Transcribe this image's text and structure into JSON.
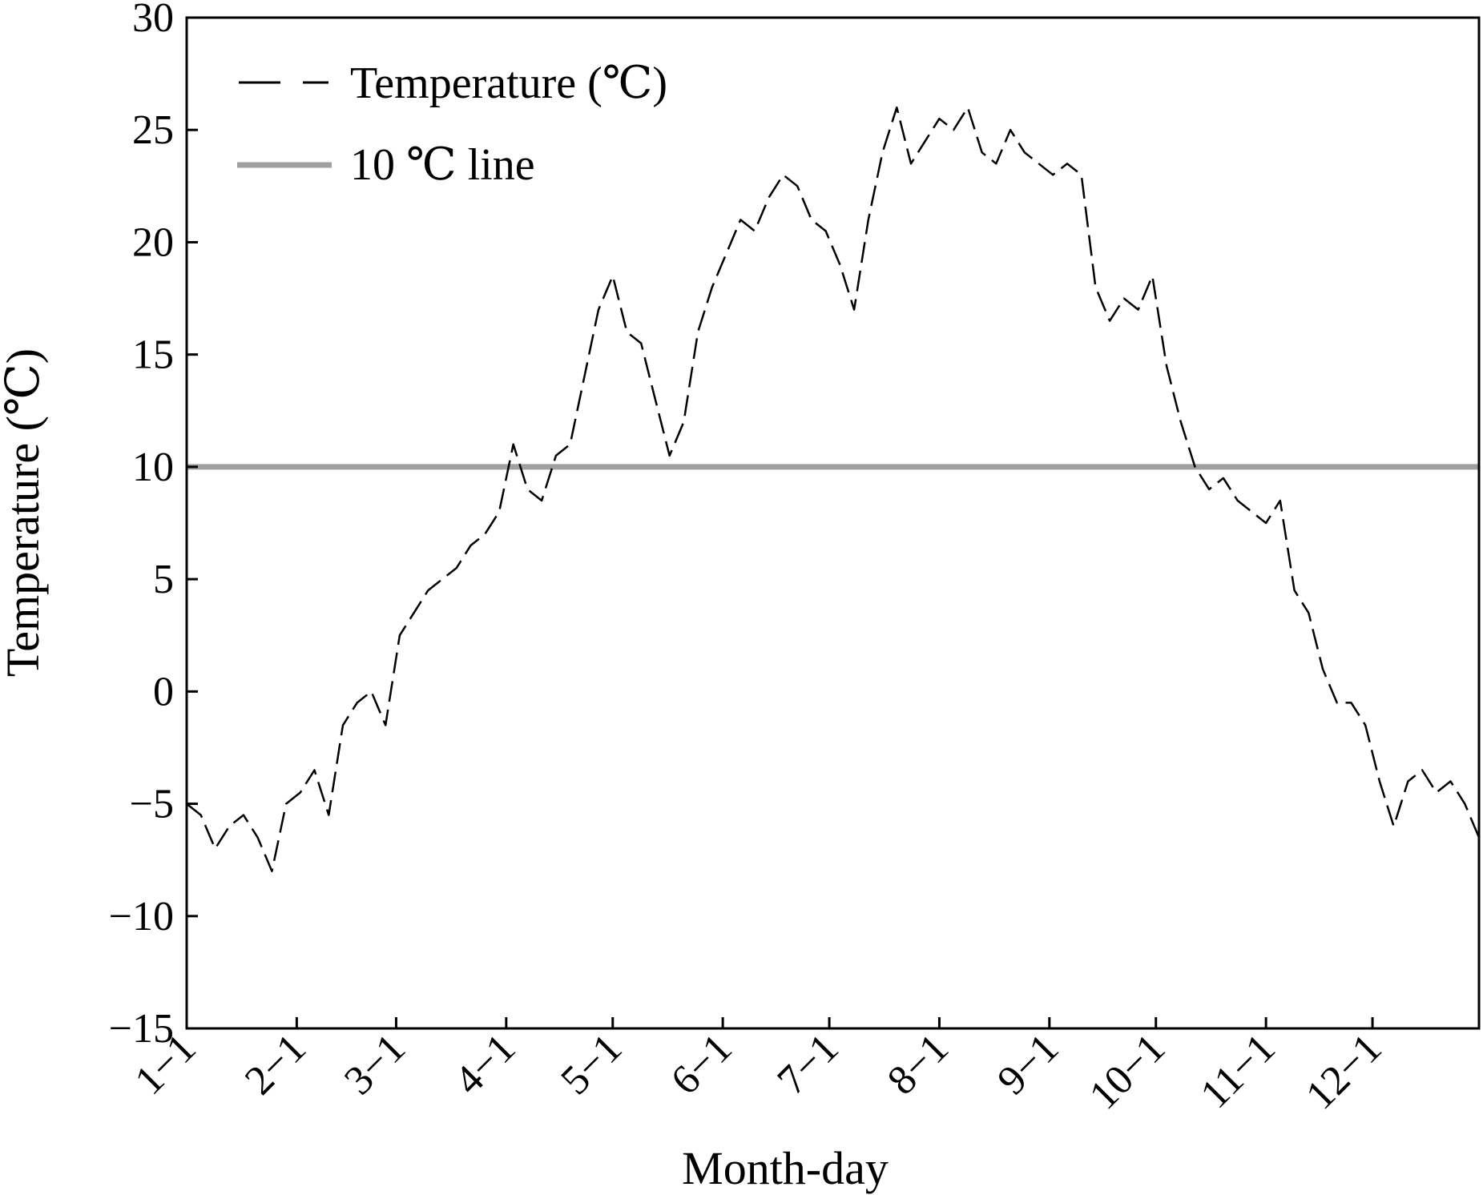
{
  "chart_data": {
    "type": "line",
    "xlabel": "Month-day",
    "ylabel": "Temperature (℃)",
    "ylim": [
      -15,
      30
    ],
    "yticks": [
      -15,
      -10,
      -5,
      0,
      5,
      10,
      15,
      20,
      25,
      30
    ],
    "ytick_labels": [
      "−15",
      "−10",
      "−5",
      "0",
      "5",
      "10",
      "15",
      "20",
      "25",
      "30"
    ],
    "xlim": [
      1,
      365
    ],
    "xticks": [
      {
        "label": "1−1",
        "day": 1
      },
      {
        "label": "2−1",
        "day": 32
      },
      {
        "label": "3−1",
        "day": 60
      },
      {
        "label": "4−1",
        "day": 91
      },
      {
        "label": "5−1",
        "day": 121
      },
      {
        "label": "6−1",
        "day": 152
      },
      {
        "label": "7−1",
        "day": 182
      },
      {
        "label": "8−1",
        "day": 213
      },
      {
        "label": "9−1",
        "day": 244
      },
      {
        "label": "10−1",
        "day": 274
      },
      {
        "label": "11−1",
        "day": 305
      },
      {
        "label": "12−1",
        "day": 335
      }
    ],
    "grid": false,
    "legend_position": "top-left",
    "series": [
      {
        "name": "Temperature (℃)",
        "style": "dashed",
        "color": "#000000",
        "x": [
          1,
          5,
          9,
          13,
          17,
          21,
          25,
          29,
          33,
          37,
          41,
          45,
          49,
          53,
          57,
          61,
          65,
          69,
          73,
          77,
          81,
          85,
          89,
          93,
          97,
          101,
          105,
          109,
          113,
          117,
          121,
          125,
          129,
          133,
          137,
          141,
          145,
          149,
          153,
          157,
          161,
          165,
          169,
          173,
          177,
          181,
          185,
          189,
          193,
          197,
          201,
          205,
          209,
          213,
          217,
          221,
          225,
          229,
          233,
          237,
          241,
          245,
          249,
          253,
          257,
          261,
          265,
          269,
          273,
          277,
          281,
          285,
          289,
          293,
          297,
          301,
          305,
          309,
          313,
          317,
          321,
          325,
          329,
          333,
          337,
          341,
          345,
          349,
          353,
          357,
          361,
          365
        ],
        "y": [
          -5.0,
          -5.5,
          -7.0,
          -6.0,
          -5.5,
          -6.5,
          -8.0,
          -5.0,
          -4.5,
          -3.5,
          -5.5,
          -1.5,
          -0.5,
          0.0,
          -1.5,
          2.5,
          3.5,
          4.5,
          5.0,
          5.5,
          6.5,
          7.0,
          8.0,
          11.0,
          9.0,
          8.5,
          10.5,
          11.0,
          14.0,
          17.0,
          18.5,
          16.0,
          15.5,
          13.0,
          10.5,
          12.0,
          16.0,
          18.0,
          19.5,
          21.0,
          20.5,
          22.0,
          23.0,
          22.5,
          21.0,
          20.5,
          19.0,
          17.0,
          21.0,
          24.0,
          26.0,
          23.5,
          24.5,
          25.5,
          25.0,
          26.0,
          24.0,
          23.5,
          25.0,
          24.0,
          23.5,
          23.0,
          23.5,
          23.0,
          18.0,
          16.5,
          17.5,
          17.0,
          18.5,
          14.5,
          12.0,
          10.0,
          9.0,
          9.5,
          8.5,
          8.0,
          7.5,
          8.5,
          4.5,
          3.5,
          1.0,
          -0.5,
          -0.5,
          -1.5,
          -4.0,
          -6.0,
          -4.0,
          -3.5,
          -4.5,
          -4.0,
          -5.0,
          -6.5
        ]
      },
      {
        "name": "10 ℃  line",
        "style": "solid",
        "color": "#a0a0a0",
        "constant": 10
      }
    ]
  }
}
